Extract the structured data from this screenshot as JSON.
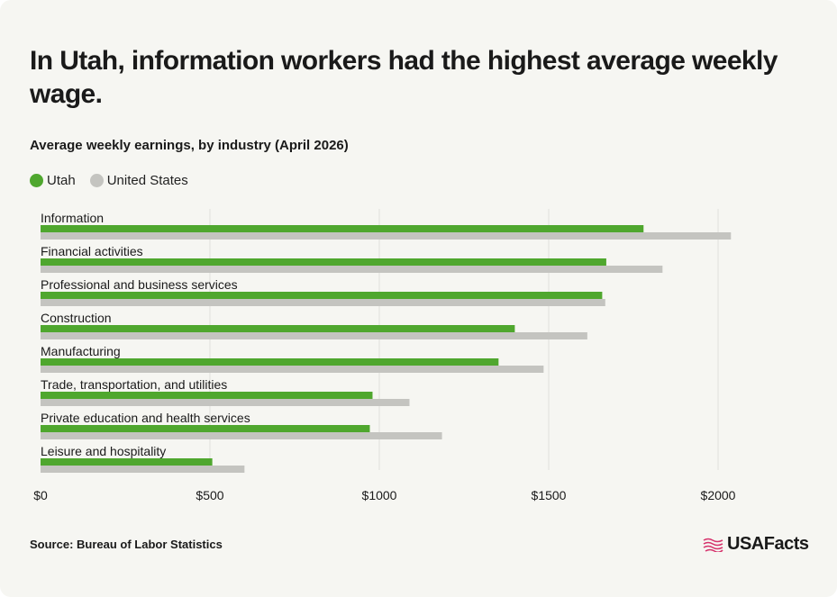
{
  "title": "In Utah, information workers had the highest average weekly wage.",
  "subtitle": "Average weekly earnings, by industry (April 2026)",
  "source": "Source: Bureau of Labor Statistics",
  "brand": "USAFacts",
  "colors": {
    "utah": "#4fa72e",
    "us": "#c4c4c0",
    "grid": "#e0e0dc",
    "background": "#f6f6f2"
  },
  "chart_data": {
    "type": "bar",
    "orientation": "horizontal",
    "categories": [
      "Information",
      "Financial activities",
      "Professional and business services",
      "Construction",
      "Manufacturing",
      "Trade, transportation, and utilities",
      "Private education and health services",
      "Leisure and hospitality"
    ],
    "series": [
      {
        "name": "Utah",
        "color": "#4fa72e",
        "values": [
          1780,
          1670,
          1658,
          1400,
          1352,
          980,
          972,
          507
        ]
      },
      {
        "name": "United States",
        "color": "#c4c4c0",
        "values": [
          2038,
          1836,
          1667,
          1614,
          1485,
          1089,
          1185,
          602
        ]
      }
    ],
    "xlim": [
      0,
      2000
    ],
    "xticks": [
      0,
      500,
      1000,
      1500,
      2000
    ],
    "xtick_labels": [
      "$0",
      "$500",
      "$1000",
      "$1500",
      "$2000"
    ],
    "grid": true,
    "legend": "top-left"
  }
}
